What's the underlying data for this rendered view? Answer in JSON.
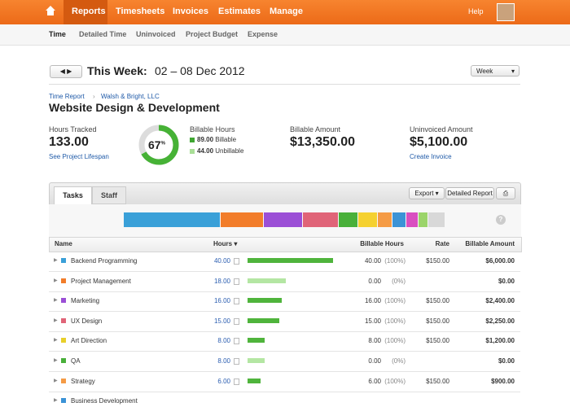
{
  "nav": {
    "items": [
      "Reports",
      "Timesheets",
      "Invoices",
      "Estimates",
      "Manage"
    ],
    "help": "Help"
  },
  "subnav": [
    "Time",
    "Detailed Time",
    "Uninvoiced",
    "Project Budget",
    "Expense"
  ],
  "header": {
    "label": "This Week:",
    "range": "02 – 08 Dec 2012",
    "period": "Week"
  },
  "breadcrumb": [
    "Time Report",
    "Walsh & Bright, LLC"
  ],
  "project": "Website Design & Development",
  "stats": {
    "hours_label": "Hours Tracked",
    "hours": "133.00",
    "lifespan": "See Project Lifespan",
    "billable_pct": 67,
    "pct_sign": "%",
    "billable_label": "Billable Hours",
    "billable": "89.00",
    "billable_text": "Billable",
    "unbillable": "44.00",
    "unbillable_text": "Unbillable",
    "amount_label": "Billable Amount",
    "amount": "$13,350.00",
    "uninvoiced_label": "Uninvoiced Amount",
    "uninvoiced": "$5,100.00",
    "create": "Create Invoice"
  },
  "tabs": [
    "Tasks",
    "Staff"
  ],
  "buttons": {
    "export": "Export",
    "detailed": "Detailed Report"
  },
  "breakdown": {
    "values": [
      40,
      18,
      16,
      15,
      8,
      8,
      6,
      6,
      5,
      4,
      7
    ],
    "colors": [
      "#3aa0d8",
      "#f27d2a",
      "#9b4fd6",
      "#e06478",
      "#49b03a",
      "#f5d130",
      "#f59b45",
      "#3b93d6",
      "#d94fc0",
      "#9bd46a",
      "#d8d8d8"
    ]
  },
  "table": {
    "columns": [
      "Name",
      "Hours",
      "Billable Hours",
      "Rate",
      "Billable Amount"
    ],
    "rows": [
      {
        "name": "Backend Programming",
        "color": "#3aa0d8",
        "hours": "40.00",
        "billable": "40.00",
        "pct": "(100%)",
        "rate": "$150.00",
        "amount": "$6,000.00"
      },
      {
        "name": "Project Management",
        "color": "#f27d2a",
        "hours": "18.00",
        "billable": "0.00",
        "pct": "(0%)",
        "rate": null,
        "amount": "$0.00"
      },
      {
        "name": "Marketing",
        "color": "#9b4fd6",
        "hours": "16.00",
        "billable": "16.00",
        "pct": "(100%)",
        "rate": "$150.00",
        "amount": "$2,400.00"
      },
      {
        "name": "UX Design",
        "color": "#e06478",
        "hours": "15.00",
        "billable": "15.00",
        "pct": "(100%)",
        "rate": "$150.00",
        "amount": "$2,250.00"
      },
      {
        "name": "Art Direction",
        "color": "#e8cf2a",
        "hours": "8.00",
        "billable": "8.00",
        "pct": "(100%)",
        "rate": "$150.00",
        "amount": "$1,200.00"
      },
      {
        "name": "QA",
        "color": "#49b03a",
        "hours": "8.00",
        "billable": "0.00",
        "pct": "(0%)",
        "rate": null,
        "amount": "$0.00"
      },
      {
        "name": "Strategy",
        "color": "#f59b45",
        "hours": "6.00",
        "billable": "6.00",
        "pct": "(100%)",
        "rate": "$150.00",
        "amount": "$900.00"
      },
      {
        "name": "Business Development",
        "color": "#3b93d6",
        "hours": null,
        "billable": null,
        "pct": null,
        "rate": null,
        "amount": null
      }
    ]
  }
}
